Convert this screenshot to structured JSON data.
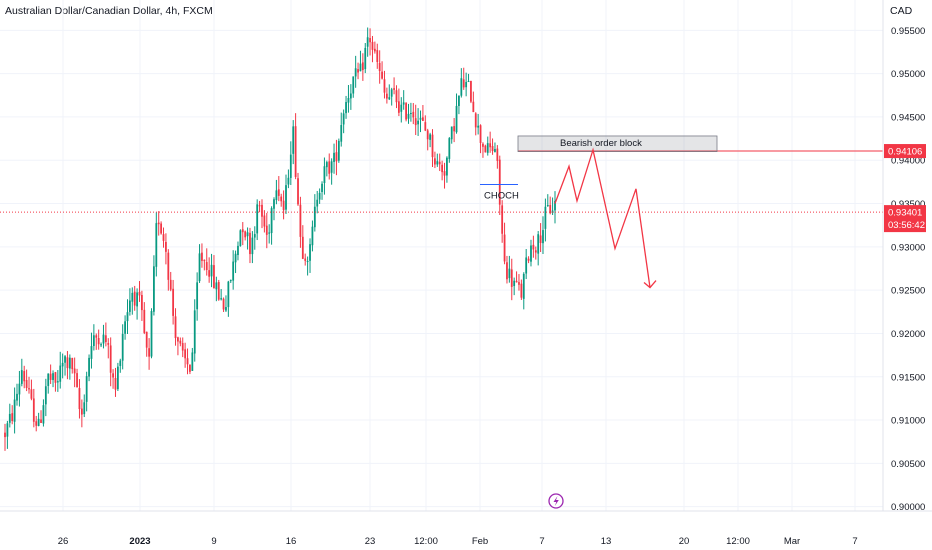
{
  "header": {
    "title": "Australian Dollar/Canadian Dollar, 4h, FXCM",
    "currency": "CAD"
  },
  "chart_data": {
    "type": "candlestick",
    "title": "Australian Dollar/Canadian Dollar, 4h, FXCM",
    "ylim": [
      0.8995,
      0.9585
    ],
    "y_ticks": [
      "0.95500",
      "0.95000",
      "0.94500",
      "0.94000",
      "0.93500",
      "0.93000",
      "0.92500",
      "0.92000",
      "0.91500",
      "0.91000",
      "0.90500",
      "0.90000"
    ],
    "x_ticks": [
      {
        "label": "26",
        "bold": false
      },
      {
        "label": "2023",
        "bold": true
      },
      {
        "label": "9",
        "bold": false
      },
      {
        "label": "16",
        "bold": false
      },
      {
        "label": "23",
        "bold": false
      },
      {
        "label": "12:00",
        "bold": false
      },
      {
        "label": "Feb",
        "bold": false
      },
      {
        "label": "7",
        "bold": false
      },
      {
        "label": "13",
        "bold": false
      },
      {
        "label": "20",
        "bold": false
      },
      {
        "label": "12:00",
        "bold": false
      },
      {
        "label": "Mar",
        "bold": false
      },
      {
        "label": "7",
        "bold": false
      }
    ],
    "grid": true,
    "colors": {
      "up": "#089981",
      "down": "#f23645",
      "projection": "#f23645",
      "grid": "#f0f3fa"
    },
    "price_path": [
      0.9085,
      0.911,
      0.916,
      0.912,
      0.909,
      0.915,
      0.914,
      0.917,
      0.916,
      0.91,
      0.918,
      0.92,
      0.919,
      0.913,
      0.921,
      0.925,
      0.923,
      0.916,
      0.934,
      0.93,
      0.921,
      0.917,
      0.916,
      0.929,
      0.928,
      0.925,
      0.923,
      0.928,
      0.933,
      0.93,
      0.935,
      0.931,
      0.938,
      0.934,
      0.944,
      0.93,
      0.929,
      0.937,
      0.939,
      0.94,
      0.946,
      0.949,
      0.95,
      0.9545,
      0.951,
      0.947,
      0.9475,
      0.9455,
      0.946,
      0.9445,
      0.943,
      0.9395,
      0.939,
      0.944,
      0.949,
      0.948,
      0.943,
      0.941,
      0.9415,
      0.928,
      0.926,
      0.9245,
      0.93,
      0.9305,
      0.934,
      0.935
    ],
    "last_price": "0.93401",
    "countdown": "03:56:42",
    "order_block": {
      "label": "Bearish order block",
      "low": 0.941,
      "high": 0.9428
    },
    "resistance": {
      "price": "0.94106"
    },
    "choch": {
      "label": "CHOCH",
      "price": 0.9372
    },
    "projection": [
      0.935,
      0.9393,
      0.9353,
      0.9412,
      0.9298,
      0.9367,
      0.9253
    ]
  }
}
